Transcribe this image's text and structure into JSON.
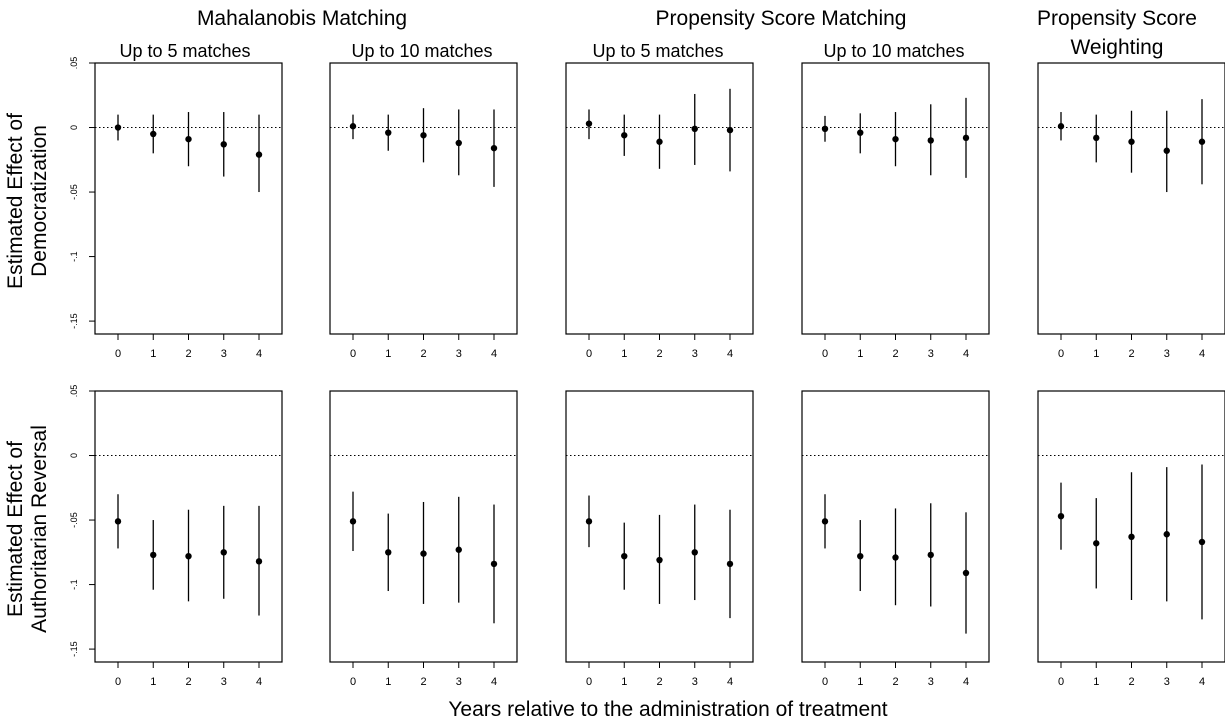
{
  "figure": {
    "group_titles": [
      "Mahalanobis Matching",
      "Propensity Score Matching",
      "Propensity Score",
      "Weighting"
    ],
    "panel_subtitles": [
      "Up to 5 matches",
      "Up to 10 matches",
      "Up to 5 matches",
      "Up to 10 matches"
    ],
    "row_ylabels": [
      [
        "Estimated Effect of",
        "Democratization"
      ],
      [
        "Estimated Effect of",
        "Authoritarian Reversal"
      ]
    ],
    "xlabel": "Years relative to the administration of treatment"
  },
  "chart_data": {
    "type": "scatter",
    "style": "point estimates with vertical confidence-interval bars, dotted reference line at y = 0, grid off",
    "x_ticks": [
      "0",
      "1",
      "2",
      "3",
      "4"
    ],
    "y_ticks": [
      0.05,
      0,
      -0.05,
      -0.1,
      -0.15
    ],
    "y_tick_labels": [
      ".05",
      "0",
      "-.05",
      "-.1",
      "-.15"
    ],
    "ylim": [
      -0.16,
      0.05
    ],
    "rows": [
      {
        "panels": [
          {
            "x": [
              0,
              1,
              2,
              3,
              4
            ],
            "estimate": [
              0.0,
              -0.005,
              -0.009,
              -0.013,
              -0.021
            ],
            "lower": [
              -0.01,
              -0.02,
              -0.03,
              -0.038,
              -0.05
            ],
            "upper": [
              0.01,
              0.01,
              0.012,
              0.012,
              0.01
            ]
          },
          {
            "x": [
              0,
              1,
              2,
              3,
              4
            ],
            "estimate": [
              0.001,
              -0.004,
              -0.006,
              -0.012,
              -0.016
            ],
            "lower": [
              -0.009,
              -0.018,
              -0.027,
              -0.037,
              -0.046
            ],
            "upper": [
              0.01,
              0.01,
              0.015,
              0.014,
              0.014
            ]
          },
          {
            "x": [
              0,
              1,
              2,
              3,
              4
            ],
            "estimate": [
              0.003,
              -0.006,
              -0.011,
              -0.001,
              -0.002
            ],
            "lower": [
              -0.009,
              -0.022,
              -0.032,
              -0.029,
              -0.034
            ],
            "upper": [
              0.014,
              0.01,
              0.01,
              0.026,
              0.03
            ]
          },
          {
            "x": [
              0,
              1,
              2,
              3,
              4
            ],
            "estimate": [
              -0.001,
              -0.004,
              -0.009,
              -0.01,
              -0.008
            ],
            "lower": [
              -0.011,
              -0.02,
              -0.03,
              -0.037,
              -0.039
            ],
            "upper": [
              0.009,
              0.011,
              0.012,
              0.018,
              0.023
            ]
          },
          {
            "x": [
              0,
              1,
              2,
              3,
              4
            ],
            "estimate": [
              0.001,
              -0.008,
              -0.011,
              -0.018,
              -0.011
            ],
            "lower": [
              -0.01,
              -0.027,
              -0.035,
              -0.05,
              -0.044
            ],
            "upper": [
              0.012,
              0.01,
              0.013,
              0.013,
              0.022
            ]
          }
        ]
      },
      {
        "panels": [
          {
            "x": [
              0,
              1,
              2,
              3,
              4
            ],
            "estimate": [
              -0.051,
              -0.077,
              -0.078,
              -0.075,
              -0.082
            ],
            "lower": [
              -0.072,
              -0.104,
              -0.113,
              -0.111,
              -0.124
            ],
            "upper": [
              -0.03,
              -0.05,
              -0.042,
              -0.039,
              -0.039
            ]
          },
          {
            "x": [
              0,
              1,
              2,
              3,
              4
            ],
            "estimate": [
              -0.051,
              -0.075,
              -0.076,
              -0.073,
              -0.084
            ],
            "lower": [
              -0.074,
              -0.105,
              -0.115,
              -0.114,
              -0.13
            ],
            "upper": [
              -0.028,
              -0.045,
              -0.036,
              -0.032,
              -0.038
            ]
          },
          {
            "x": [
              0,
              1,
              2,
              3,
              4
            ],
            "estimate": [
              -0.051,
              -0.078,
              -0.081,
              -0.075,
              -0.084
            ],
            "lower": [
              -0.071,
              -0.104,
              -0.115,
              -0.112,
              -0.126
            ],
            "upper": [
              -0.031,
              -0.052,
              -0.046,
              -0.038,
              -0.042
            ]
          },
          {
            "x": [
              0,
              1,
              2,
              3,
              4
            ],
            "estimate": [
              -0.051,
              -0.078,
              -0.079,
              -0.077,
              -0.091
            ],
            "lower": [
              -0.072,
              -0.105,
              -0.116,
              -0.117,
              -0.138
            ],
            "upper": [
              -0.03,
              -0.05,
              -0.041,
              -0.037,
              -0.044
            ]
          },
          {
            "x": [
              0,
              1,
              2,
              3,
              4
            ],
            "estimate": [
              -0.047,
              -0.068,
              -0.063,
              -0.061,
              -0.067
            ],
            "lower": [
              -0.073,
              -0.103,
              -0.112,
              -0.113,
              -0.127
            ],
            "upper": [
              -0.021,
              -0.033,
              -0.013,
              -0.009,
              -0.007
            ]
          }
        ]
      }
    ]
  }
}
